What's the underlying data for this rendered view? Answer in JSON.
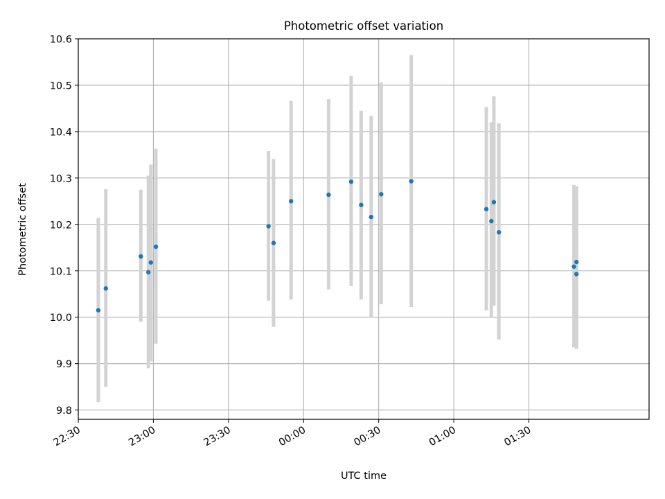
{
  "chart_data": {
    "type": "scatter",
    "title": "Photometric offset variation",
    "xlabel": "UTC time",
    "ylabel": "Photometric offset",
    "grid": true,
    "ylim": [
      9.78,
      10.6
    ],
    "xlim": [
      "22:30",
      "02:18"
    ],
    "x_ticks": [
      "22:30",
      "23:00",
      "23:30",
      "00:00",
      "00:30",
      "01:00",
      "01:30"
    ],
    "y_ticks": [
      "9.8",
      "9.9",
      "10.0",
      "10.1",
      "10.2",
      "10.3",
      "10.4",
      "10.5",
      "10.6"
    ],
    "marker_color": "#1f77b4",
    "errorbar_color": "#d3d3d3",
    "series": [
      {
        "x": [
          "22:38",
          "22:41",
          "22:55",
          "22:58",
          "22:59",
          "23:01",
          "23:46",
          "23:48",
          "23:55",
          "00:10",
          "00:19",
          "00:23",
          "00:27",
          "00:31",
          "00:43",
          "01:13",
          "01:15",
          "01:16",
          "01:18",
          "01:48",
          "01:49",
          "01:49"
        ],
        "y": [
          10.015,
          10.062,
          10.131,
          10.097,
          10.118,
          10.152,
          10.196,
          10.16,
          10.25,
          10.264,
          10.292,
          10.242,
          10.216,
          10.265,
          10.293,
          10.233,
          10.207,
          10.248,
          10.183,
          10.109,
          10.119,
          10.093
        ],
        "y_low": [
          9.817,
          9.85,
          9.99,
          9.89,
          9.905,
          9.943,
          10.036,
          9.979,
          10.038,
          10.06,
          10.067,
          10.038,
          10.0,
          10.028,
          10.022,
          10.015,
          9.998,
          10.025,
          9.952,
          9.935,
          9.94,
          9.932
        ],
        "y_high": [
          10.214,
          10.276,
          10.275,
          10.305,
          10.329,
          10.363,
          10.358,
          10.341,
          10.466,
          10.47,
          10.52,
          10.445,
          10.434,
          10.506,
          10.565,
          10.453,
          10.42,
          10.476,
          10.418,
          10.285,
          10.282,
          10.256
        ]
      }
    ]
  }
}
